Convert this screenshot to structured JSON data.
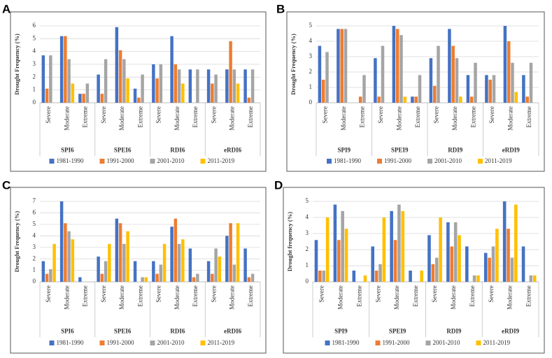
{
  "chart_data": [
    {
      "type": "bar",
      "panel": "A",
      "ylabel": "Drought Frequency (%)",
      "categories": [
        "Severe",
        "Moderate",
        "Extreme",
        "Severe",
        "Moderate",
        "Extreme",
        "Severe",
        "Moderate",
        "Extreme",
        "Severe",
        "Moderate",
        "Extreme"
      ],
      "groups": [
        "SPI6",
        "SPEI6",
        "RDI6",
        "eRDI6"
      ],
      "series": [
        {
          "name": "1981-1990",
          "color": "#4472c4",
          "values": [
            3.7,
            5.2,
            0.7,
            2.2,
            5.9,
            1.1,
            3.0,
            5.2,
            2.6,
            2.6,
            2.6,
            2.6
          ]
        },
        {
          "name": "1991-2000",
          "color": "#ed7d31",
          "values": [
            1.1,
            5.2,
            0.7,
            0.7,
            4.1,
            0.4,
            1.9,
            3.0,
            0,
            1.5,
            4.8,
            0.4
          ]
        },
        {
          "name": "2001-2010",
          "color": "#a5a5a5",
          "values": [
            3.7,
            3.4,
            1.5,
            3.4,
            3.4,
            2.2,
            3.0,
            2.6,
            2.6,
            2.2,
            2.6,
            2.6
          ]
        },
        {
          "name": "2011-2019",
          "color": "#ffc000",
          "values": [
            0,
            1.5,
            0,
            0,
            1.9,
            0,
            0,
            1.5,
            0,
            0,
            1.5,
            0
          ]
        }
      ],
      "ylim": [
        0,
        6
      ],
      "yticks": [
        0,
        1,
        2,
        3,
        4,
        5,
        6
      ],
      "grid": true,
      "legend": "bottom"
    },
    {
      "type": "bar",
      "panel": "B",
      "ylabel": "Drought Frequency (%)",
      "categories": [
        "Severe",
        "Moderate",
        "Extreme",
        "Severe",
        "Moderate",
        "Extreme",
        "Severe",
        "Moderate",
        "Extreme",
        "Severe",
        "Moderate",
        "Extreme"
      ],
      "groups": [
        "SPI9",
        "SPEI9",
        "RDI9",
        "eRDI9"
      ],
      "series": [
        {
          "name": "1981-1990",
          "color": "#4472c4",
          "values": [
            3.7,
            4.8,
            0,
            2.9,
            5.0,
            0.4,
            2.9,
            4.8,
            1.8,
            1.8,
            5.0,
            1.8
          ]
        },
        {
          "name": "1991-2000",
          "color": "#ed7d31",
          "values": [
            1.5,
            4.8,
            0.4,
            0.4,
            4.8,
            0.4,
            1.1,
            3.7,
            0.4,
            1.5,
            4.0,
            0.4
          ]
        },
        {
          "name": "2001-2010",
          "color": "#a5a5a5",
          "values": [
            3.3,
            4.8,
            1.8,
            3.7,
            4.4,
            1.8,
            3.7,
            2.9,
            2.6,
            1.8,
            2.6,
            2.6
          ]
        },
        {
          "name": "2011-2019",
          "color": "#ffc000",
          "values": [
            0,
            0,
            0,
            0,
            0.4,
            0,
            0,
            0.4,
            0,
            0,
            0.7,
            0
          ]
        }
      ],
      "ylim": [
        0,
        5
      ],
      "yticks": [
        0,
        1,
        2,
        3,
        4,
        5
      ],
      "grid": true,
      "legend": "bottom"
    },
    {
      "type": "bar",
      "panel": "C",
      "ylabel": "Drought Frequency (%)",
      "categories": [
        "Severe",
        "Moderate",
        "Extreme",
        "Severe",
        "Moderate",
        "Extreme",
        "Severe",
        "Moderate",
        "Extreme",
        "Severe",
        "Moderate",
        "Extreme"
      ],
      "groups": [
        "SPI6",
        "SPEI6",
        "RDI6",
        "eRDI6"
      ],
      "series": [
        {
          "name": "1981-1990",
          "color": "#4472c4",
          "values": [
            1.8,
            7.0,
            0.4,
            2.2,
            5.5,
            1.8,
            1.8,
            4.8,
            2.9,
            1.8,
            4.0,
            2.9
          ]
        },
        {
          "name": "1991-2000",
          "color": "#ed7d31",
          "values": [
            0.7,
            5.1,
            0,
            0.7,
            5.1,
            0,
            0.7,
            5.5,
            0.4,
            0.7,
            5.1,
            0.4
          ]
        },
        {
          "name": "2001-2010",
          "color": "#a5a5a5",
          "values": [
            1.1,
            4.4,
            0,
            1.8,
            3.3,
            0.4,
            1.5,
            3.3,
            0.7,
            2.9,
            1.5,
            0.7
          ]
        },
        {
          "name": "2011-2019",
          "color": "#ffc000",
          "values": [
            3.3,
            3.7,
            0,
            3.3,
            4.4,
            0.4,
            3.3,
            3.7,
            0,
            2.2,
            5.1,
            0
          ]
        }
      ],
      "ylim": [
        0,
        7
      ],
      "yticks": [
        0,
        1,
        2,
        3,
        4,
        5,
        6,
        7
      ],
      "grid": true,
      "legend": "bottom"
    },
    {
      "type": "bar",
      "panel": "D",
      "ylabel": "Drought frequency (%)",
      "categories": [
        "Severe",
        "Moderate",
        "Extreme",
        "Severe",
        "Moderate",
        "Extreme",
        "Severe",
        "Moderate",
        "Extreme",
        "Severe",
        "Moderate",
        "Extreme"
      ],
      "groups": [
        "SPI9",
        "SPEI9",
        "RDI9",
        "eRDI9"
      ],
      "series": [
        {
          "name": "1981-1990",
          "color": "#4472c4",
          "values": [
            2.6,
            4.8,
            0.7,
            2.2,
            4.4,
            0.7,
            2.9,
            3.7,
            2.2,
            1.8,
            5.0,
            2.2
          ]
        },
        {
          "name": "1991-2000",
          "color": "#ed7d31",
          "values": [
            0.7,
            2.6,
            0,
            0.7,
            2.6,
            0,
            1.1,
            2.2,
            0,
            1.5,
            3.3,
            0
          ]
        },
        {
          "name": "2001-2010",
          "color": "#a5a5a5",
          "values": [
            0.7,
            4.4,
            0,
            1.1,
            4.8,
            0,
            1.5,
            3.7,
            0.4,
            2.2,
            1.5,
            0.4
          ]
        },
        {
          "name": "2011-2019",
          "color": "#ffc000",
          "values": [
            4.0,
            3.3,
            0.4,
            4.0,
            4.4,
            0.7,
            4.0,
            2.9,
            0.4,
            3.3,
            4.8,
            0.4
          ]
        }
      ],
      "ylim": [
        0,
        5
      ],
      "yticks": [
        0,
        1,
        2,
        3,
        4,
        5
      ],
      "grid": true,
      "legend": "bottom"
    }
  ]
}
